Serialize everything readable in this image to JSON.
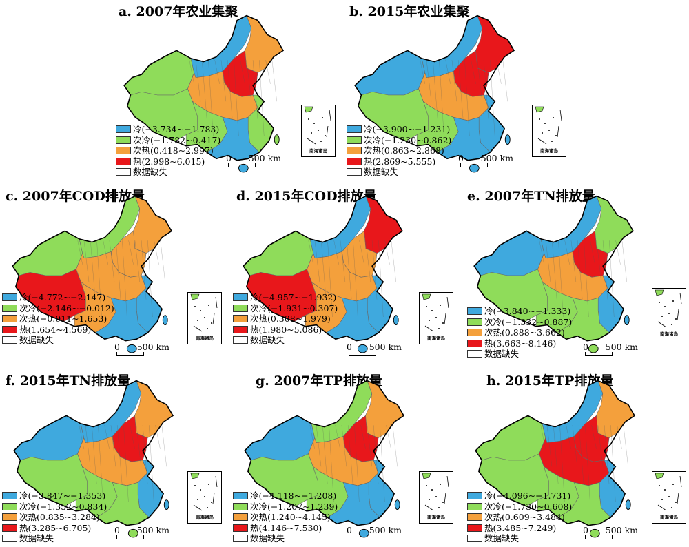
{
  "colors": {
    "cold": "#3fa9de",
    "subcold": "#8fdc5a",
    "subhot": "#f4a03c",
    "hot": "#e8171b",
    "missing": "#ffffff"
  },
  "inset_label": "南海诸岛",
  "scale": {
    "zero": "0",
    "distance": "500 km"
  },
  "panels": [
    {
      "title": "a. 2007年农业集聚",
      "legend": [
        {
          "label": "冷(−3.734~−1.783)",
          "key": "cold"
        },
        {
          "label": "次冷(−1.782~0.417)",
          "key": "subcold"
        },
        {
          "label": "次热(0.418~2.997)",
          "key": "subhot"
        },
        {
          "label": "热(2.998~6.015)",
          "key": "hot"
        },
        {
          "label": "数据缺失",
          "key": "missing"
        }
      ]
    },
    {
      "title": "b. 2015年农业集聚",
      "legend": [
        {
          "label": "冷(−3.900~−1.231)",
          "key": "cold"
        },
        {
          "label": "次冷(−1.230~0.862)",
          "key": "subcold"
        },
        {
          "label": "次热(0.863~2.868)",
          "key": "subhot"
        },
        {
          "label": "热(2.869~5.555)",
          "key": "hot"
        },
        {
          "label": "数据缺失",
          "key": "missing"
        }
      ]
    },
    {
      "title": "c. 2007年COD排放量",
      "legend": [
        {
          "label": "冷(−4.772~−2.147)",
          "key": "cold"
        },
        {
          "label": "次冷(−2.146~−0.012)",
          "key": "subcold"
        },
        {
          "label": "次热(−0.011~1.653)",
          "key": "subhot"
        },
        {
          "label": "热(1.654~4.569)",
          "key": "hot"
        },
        {
          "label": "数据缺失",
          "key": "missing"
        }
      ]
    },
    {
      "title": "d. 2015年COD排放量",
      "legend": [
        {
          "label": "冷(−4.957~−1.932)",
          "key": "cold"
        },
        {
          "label": "次冷(−1.931~0.307)",
          "key": "subcold"
        },
        {
          "label": "次热(0.308~1.979)",
          "key": "subhot"
        },
        {
          "label": "热(1.980~5.086)",
          "key": "hot"
        },
        {
          "label": "数据缺失",
          "key": "missing"
        }
      ]
    },
    {
      "title": "e. 2007年TN排放量",
      "legend": [
        {
          "label": "冷(−3.840~−1.333)",
          "key": "cold"
        },
        {
          "label": "次冷(−1.332~0.887)",
          "key": "subcold"
        },
        {
          "label": "次热(0.888~3.662)",
          "key": "subhot"
        },
        {
          "label": "热(3.663~8.146)",
          "key": "hot"
        },
        {
          "label": "数据缺失",
          "key": "missing"
        }
      ]
    },
    {
      "title": "f. 2015年TN排放量",
      "legend": [
        {
          "label": "冷(−3.847~−1.353)",
          "key": "cold"
        },
        {
          "label": "次冷(−1.352~0.834)",
          "key": "subcold"
        },
        {
          "label": "次热(0.835~3.284)",
          "key": "subhot"
        },
        {
          "label": "热(3.285~6.705)",
          "key": "hot"
        },
        {
          "label": "数据缺失",
          "key": "missing"
        }
      ]
    },
    {
      "title": "g. 2007年TP排放量",
      "legend": [
        {
          "label": "冷(−4.118~−1.208)",
          "key": "cold"
        },
        {
          "label": "次冷(−1.207~1.239)",
          "key": "subcold"
        },
        {
          "label": "次热(1.240~4.145)",
          "key": "subhot"
        },
        {
          "label": "热(4.146~7.530)",
          "key": "hot"
        },
        {
          "label": "数据缺失",
          "key": "missing"
        }
      ]
    },
    {
      "title": "h. 2015年TP排放量",
      "legend": [
        {
          "label": "冷(−4.096~−1.731)",
          "key": "cold"
        },
        {
          "label": "次冷(−1.730~0.608)",
          "key": "subcold"
        },
        {
          "label": "次热(0.609~3.484)",
          "key": "subhot"
        },
        {
          "label": "热(3.485~7.249)",
          "key": "hot"
        },
        {
          "label": "数据缺失",
          "key": "missing"
        }
      ]
    }
  ]
}
